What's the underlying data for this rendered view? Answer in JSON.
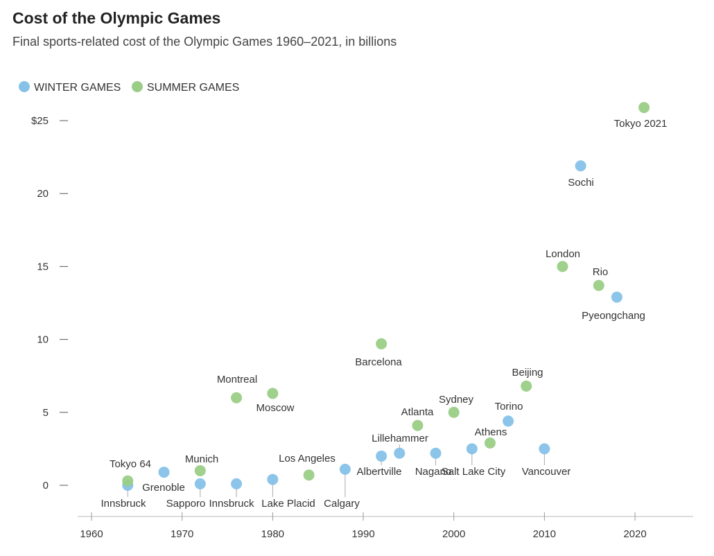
{
  "chart_data": {
    "type": "scatter",
    "title": "Cost of the Olympic Games",
    "subtitle": "Final sports-related cost of the Olympic Games 1960–2021, in billions",
    "xlabel": "",
    "ylabel": "",
    "xlim": [
      1960,
      2023
    ],
    "ylim": [
      -1.7,
      27
    ],
    "xticks": [
      1960,
      1970,
      1980,
      1990,
      2000,
      2010,
      2020
    ],
    "yticks": [
      {
        "v": 0,
        "label": "0"
      },
      {
        "v": 5,
        "label": "5"
      },
      {
        "v": 10,
        "label": "10"
      },
      {
        "v": 15,
        "label": "15"
      },
      {
        "v": 20,
        "label": "20"
      },
      {
        "v": 25,
        "label": "$25"
      }
    ],
    "legend": {
      "placement": "top-left",
      "entries": [
        {
          "key": "winter",
          "label": "WINTER GAMES",
          "color": "#86c2e8"
        },
        {
          "key": "summer",
          "label": "SUMMER GAMES",
          "color": "#9acd86"
        }
      ]
    },
    "points": [
      {
        "name": "Innsbruck",
        "year": 1964,
        "cost": 0.0,
        "type": "winter"
      },
      {
        "name": "Tokyo 64",
        "year": 1964,
        "cost": 0.3,
        "type": "summer"
      },
      {
        "name": "Grenoble",
        "year": 1968,
        "cost": 0.9,
        "type": "winter"
      },
      {
        "name": "Munich",
        "year": 1972,
        "cost": 1.0,
        "type": "summer"
      },
      {
        "name": "Sapporo",
        "year": 1972,
        "cost": 0.1,
        "type": "winter"
      },
      {
        "name": "Montreal",
        "year": 1976,
        "cost": 6.0,
        "type": "summer"
      },
      {
        "name": "Innsbruck",
        "year": 1976,
        "cost": 0.1,
        "type": "winter"
      },
      {
        "name": "Moscow",
        "year": 1980,
        "cost": 6.3,
        "type": "summer"
      },
      {
        "name": "Lake Placid",
        "year": 1980,
        "cost": 0.4,
        "type": "winter"
      },
      {
        "name": "Los Angeles",
        "year": 1984,
        "cost": 0.7,
        "type": "summer"
      },
      {
        "name": "Calgary",
        "year": 1988,
        "cost": 1.1,
        "type": "winter"
      },
      {
        "name": "Barcelona",
        "year": 1992,
        "cost": 9.7,
        "type": "summer"
      },
      {
        "name": "Albertville",
        "year": 1992,
        "cost": 2.0,
        "type": "winter"
      },
      {
        "name": "Lillehammer",
        "year": 1994,
        "cost": 2.2,
        "type": "winter"
      },
      {
        "name": "Atlanta",
        "year": 1996,
        "cost": 4.1,
        "type": "summer"
      },
      {
        "name": "Nagano",
        "year": 1998,
        "cost": 2.2,
        "type": "winter"
      },
      {
        "name": "Sydney",
        "year": 2000,
        "cost": 5.0,
        "type": "summer"
      },
      {
        "name": "Salt Lake City",
        "year": 2002,
        "cost": 2.5,
        "type": "winter"
      },
      {
        "name": "Athens",
        "year": 2004,
        "cost": 2.9,
        "type": "summer"
      },
      {
        "name": "Torino",
        "year": 2006,
        "cost": 4.4,
        "type": "winter"
      },
      {
        "name": "Beijing",
        "year": 2008,
        "cost": 6.8,
        "type": "summer"
      },
      {
        "name": "Vancouver",
        "year": 2010,
        "cost": 2.5,
        "type": "winter"
      },
      {
        "name": "London",
        "year": 2012,
        "cost": 15.0,
        "type": "summer"
      },
      {
        "name": "Sochi",
        "year": 2014,
        "cost": 21.9,
        "type": "winter"
      },
      {
        "name": "Rio",
        "year": 2016,
        "cost": 13.7,
        "type": "summer"
      },
      {
        "name": "Pyeongchang",
        "year": 2018,
        "cost": 12.9,
        "type": "winter"
      },
      {
        "name": "Tokyo 2021",
        "year": 2021,
        "cost": 25.9,
        "type": "summer"
      }
    ]
  }
}
